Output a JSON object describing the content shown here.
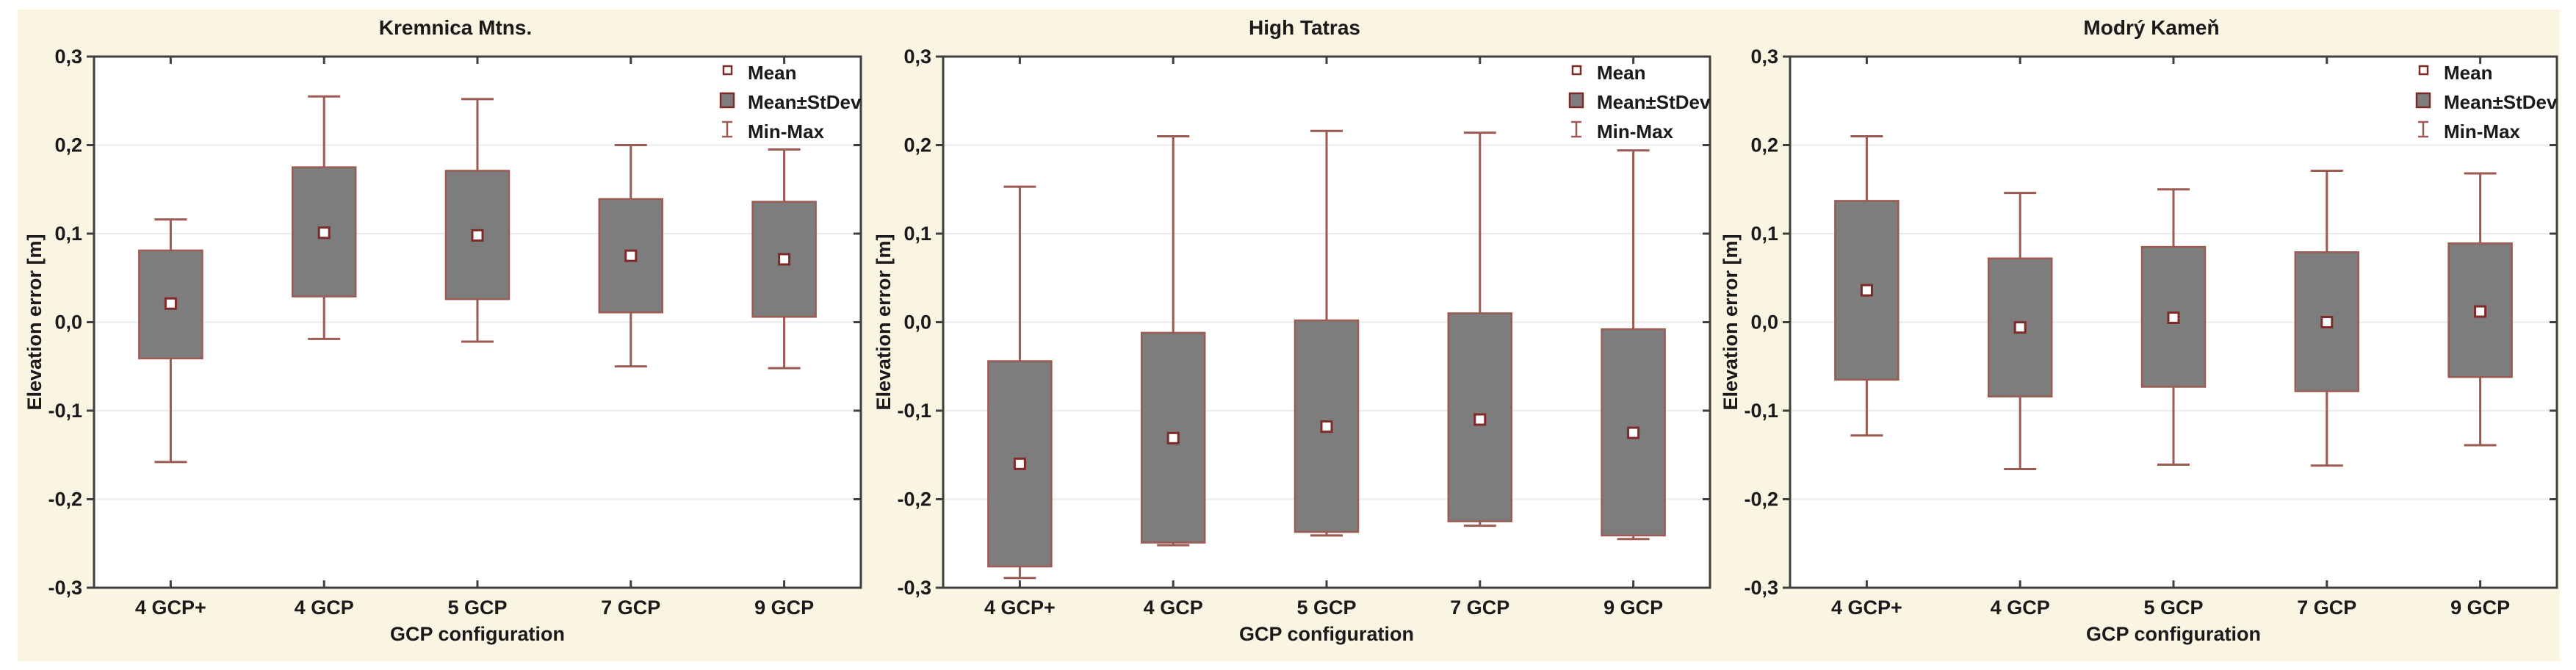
{
  "figure": {
    "page_bg": "#ffffff",
    "canvas_bg": "#faf4e2",
    "plot_bg": "#ffffff",
    "colors": {
      "box_fill": "#7d7d7d",
      "box_border": "#9b5a52",
      "whisker": "#9b5a52",
      "mean_marker_border": "#7e2a29",
      "mean_marker_fill": "#ffffff",
      "axis": "#3f3f3f",
      "grid": "#ebebeb",
      "text": "#1a1a1a"
    },
    "y_axis_label": "Elevation error [m]",
    "x_axis_label": "GCP configuration",
    "y_ticks": [
      {
        "label": "0,3",
        "value": 0.3
      },
      {
        "label": "0,2",
        "value": 0.2
      },
      {
        "label": "0,1",
        "value": 0.1
      },
      {
        "label": "0,0",
        "value": 0.0
      },
      {
        "label": "-0,1",
        "value": -0.1
      },
      {
        "label": "-0,2",
        "value": -0.2
      },
      {
        "label": "-0,3",
        "value": -0.3
      }
    ],
    "legend": [
      {
        "label": "Mean",
        "symbol": "mean-square"
      },
      {
        "label": "Mean±StDev",
        "symbol": "stdev-box"
      },
      {
        "label": "Min-Max",
        "symbol": "minmax-whisker"
      }
    ]
  },
  "chart_data": [
    {
      "type": "box",
      "title": "Kremnica Mtns.",
      "xlabel": "GCP configuration",
      "ylabel": "Elevation error [m]",
      "ylim": [
        -0.3,
        0.3
      ],
      "grid": "horizontal",
      "legend_position": "top-right-inside",
      "legend": [
        "Mean",
        "Mean±StDev",
        "Min-Max"
      ],
      "categories": [
        "4 GCP+",
        "4 GCP",
        "5 GCP",
        "7 GCP",
        "9 GCP"
      ],
      "points": [
        {
          "category": "4 GCP+",
          "mean": 0.021,
          "box_high": 0.081,
          "box_low": -0.041,
          "max": 0.116,
          "min": -0.158
        },
        {
          "category": "4 GCP",
          "mean": 0.101,
          "box_high": 0.175,
          "box_low": 0.029,
          "max": 0.255,
          "min": -0.019
        },
        {
          "category": "5 GCP",
          "mean": 0.098,
          "box_high": 0.171,
          "box_low": 0.026,
          "max": 0.252,
          "min": -0.022
        },
        {
          "category": "7 GCP",
          "mean": 0.075,
          "box_high": 0.139,
          "box_low": 0.011,
          "max": 0.2,
          "min": -0.05
        },
        {
          "category": "9 GCP",
          "mean": 0.071,
          "box_high": 0.136,
          "box_low": 0.006,
          "max": 0.195,
          "min": -0.052
        }
      ]
    },
    {
      "type": "box",
      "title": "High Tatras",
      "xlabel": "GCP configuration",
      "ylabel": "Elevation error [m]",
      "ylim": [
        -0.3,
        0.3
      ],
      "grid": "horizontal",
      "legend_position": "top-right-inside",
      "legend": [
        "Mean",
        "Mean±StDev",
        "Min-Max"
      ],
      "categories": [
        "4 GCP+",
        "4 GCP",
        "5 GCP",
        "7 GCP",
        "9 GCP"
      ],
      "points": [
        {
          "category": "4 GCP+",
          "mean": -0.16,
          "box_high": -0.044,
          "box_low": -0.276,
          "max": 0.153,
          "min": -0.289
        },
        {
          "category": "4 GCP",
          "mean": -0.131,
          "box_high": -0.012,
          "box_low": -0.249,
          "max": 0.21,
          "min": -0.252
        },
        {
          "category": "5 GCP",
          "mean": -0.118,
          "box_high": 0.002,
          "box_low": -0.237,
          "max": 0.216,
          "min": -0.241
        },
        {
          "category": "7 GCP",
          "mean": -0.11,
          "box_high": 0.01,
          "box_low": -0.225,
          "max": 0.214,
          "min": -0.23
        },
        {
          "category": "9 GCP",
          "mean": -0.125,
          "box_high": -0.008,
          "box_low": -0.241,
          "max": 0.194,
          "min": -0.245
        }
      ]
    },
    {
      "type": "box",
      "title": "Modrý Kameň",
      "xlabel": "GCP configuration",
      "ylabel": "Elevation error [m]",
      "ylim": [
        -0.3,
        0.3
      ],
      "grid": "horizontal",
      "legend_position": "top-right-inside",
      "legend": [
        "Mean",
        "Mean±StDev",
        "Min-Max"
      ],
      "categories": [
        "4 GCP+",
        "4 GCP",
        "5 GCP",
        "7 GCP",
        "9 GCP"
      ],
      "points": [
        {
          "category": "4 GCP+",
          "mean": 0.036,
          "box_high": 0.137,
          "box_low": -0.065,
          "max": 0.21,
          "min": -0.128
        },
        {
          "category": "4 GCP",
          "mean": -0.006,
          "box_high": 0.072,
          "box_low": -0.084,
          "max": 0.146,
          "min": -0.166
        },
        {
          "category": "5 GCP",
          "mean": 0.005,
          "box_high": 0.085,
          "box_low": -0.073,
          "max": 0.15,
          "min": -0.161
        },
        {
          "category": "7 GCP",
          "mean": 0.0,
          "box_high": 0.079,
          "box_low": -0.078,
          "max": 0.171,
          "min": -0.162
        },
        {
          "category": "9 GCP",
          "mean": 0.012,
          "box_high": 0.089,
          "box_low": -0.062,
          "max": 0.168,
          "min": -0.139
        }
      ]
    }
  ]
}
